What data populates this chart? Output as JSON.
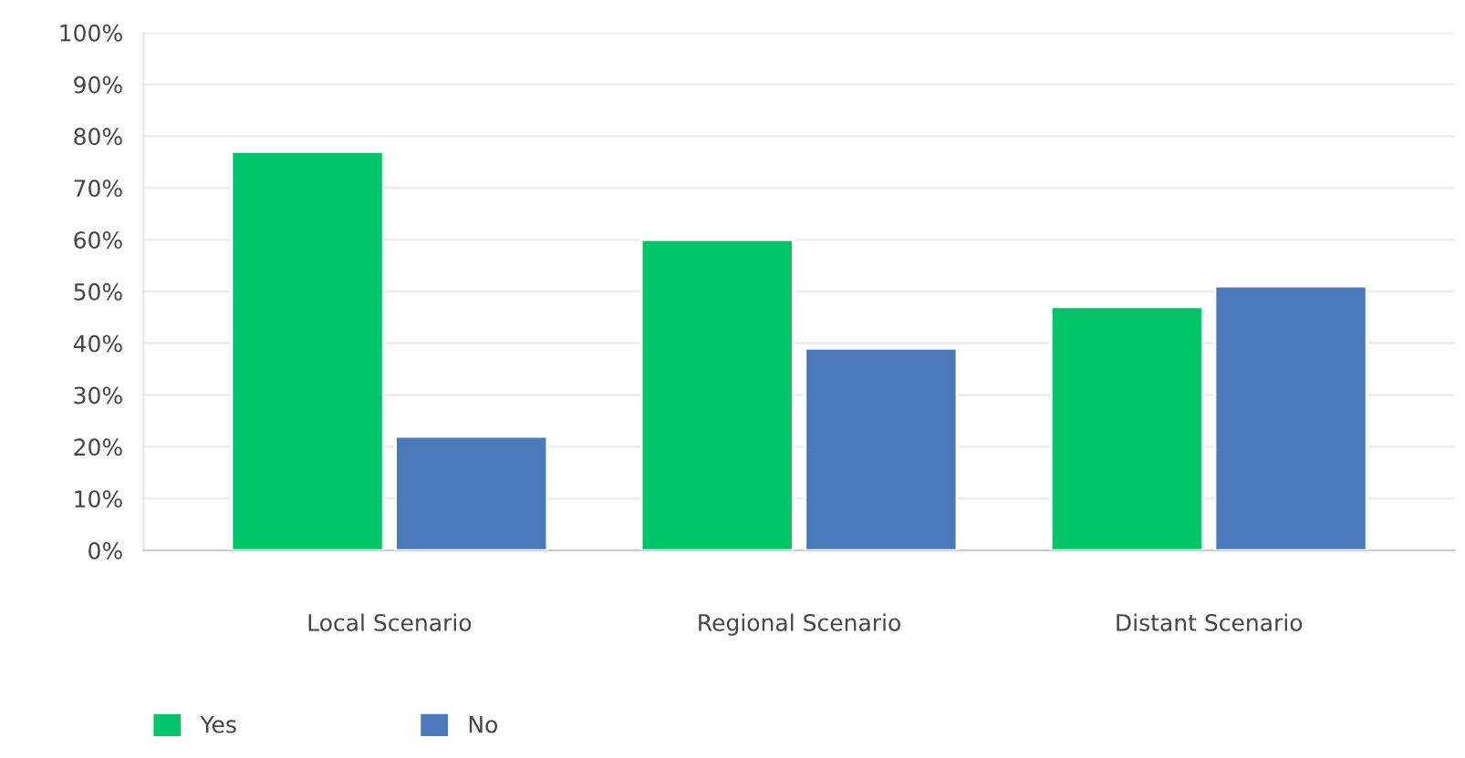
{
  "chart_data": {
    "type": "bar",
    "categories": [
      "Local Scenario",
      "Regional Scenario",
      "Distant Scenario"
    ],
    "series": [
      {
        "name": "Yes",
        "color": "#00c46a",
        "values": [
          77,
          60,
          47
        ]
      },
      {
        "name": "No",
        "color": "#4a78b8",
        "values": [
          22,
          39,
          51
        ]
      }
    ],
    "ylim": [
      0,
      100
    ],
    "yticks": [
      {
        "value": 0,
        "label": "0%"
      },
      {
        "value": 10,
        "label": "10%"
      },
      {
        "value": 20,
        "label": "20%"
      },
      {
        "value": 30,
        "label": "30%"
      },
      {
        "value": 40,
        "label": "40%"
      },
      {
        "value": 50,
        "label": "50%"
      },
      {
        "value": 60,
        "label": "60%"
      },
      {
        "value": 70,
        "label": "70%"
      },
      {
        "value": 80,
        "label": "80%"
      },
      {
        "value": 90,
        "label": "90%"
      },
      {
        "value": 100,
        "label": "100%"
      }
    ],
    "grid": "y",
    "legend": "bottom left"
  }
}
